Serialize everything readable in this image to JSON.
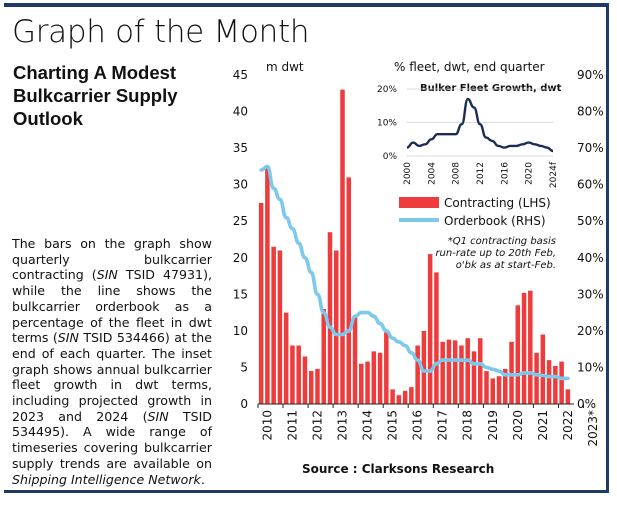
{
  "page": {
    "title": "Graph of the Month",
    "subtitle": "Charting A Modest Bulkcarrier Supply Outlook",
    "body": {
      "p1": "The bars on the graph show quarterly bulkcarrier contracting (",
      "sin1": "SIN",
      "p2": " TSID 47931), while the line shows the bulkcarrier orderbook as a percentage of the fleet in dwt terms (",
      "sin2": "SIN",
      "p3": " TSID 534466) at the end of each quarter. The inset graph shows annual bulkcarrier fleet growth in dwt terms, including projected growth in 2023 and 2024 (",
      "sin3": "SIN",
      "p4": " TSID 534495). A wide range of timeseries covering bulkcarrier supply trends are available on ",
      "link": "Shipping Intelligence Network",
      "p5": "."
    },
    "source": "Source : Clarksons Research",
    "footnote_line1": "*Q1 contracting basis",
    "footnote_line2": "run-rate up to 20th Feb,",
    "footnote_line3": "o'bk as at start-Feb."
  },
  "colors": {
    "bars": "#ee3b3b",
    "line": "#7cc9ec",
    "inset_line": "#1c2d55",
    "frame": "#1f3a64"
  },
  "chart_data": [
    {
      "type": "bar+line",
      "left_axis_label": "m dwt",
      "right_axis_label": "% fleet, dwt, end quarter",
      "left_ticks": [
        "0",
        "5",
        "10",
        "15",
        "20",
        "25",
        "30",
        "35",
        "40",
        "45"
      ],
      "right_ticks": [
        "0%",
        "10%",
        "20%",
        "30%",
        "40%",
        "50%",
        "60%",
        "70%",
        "80%",
        "90%"
      ],
      "ylim_left": [
        0,
        45
      ],
      "ylim_right": [
        0,
        90
      ],
      "x_tick_labels": [
        "2010",
        "2011",
        "2012",
        "2013",
        "2014",
        "2015",
        "2016",
        "2017",
        "2018",
        "2019",
        "2020",
        "2021",
        "2022",
        "2023*"
      ],
      "legend": {
        "bars": "Contracting (LHS)",
        "line": "Orderbook (RHS)"
      },
      "series": [
        {
          "name": "Contracting (LHS)",
          "unit": "m dwt",
          "values": [
            27.5,
            32.5,
            21.5,
            21,
            12.5,
            8,
            8,
            6.5,
            4.5,
            4.8,
            13,
            23.5,
            21,
            43,
            31,
            12,
            5.5,
            5.8,
            7.2,
            7,
            9.8,
            2,
            1.2,
            1.8,
            2.3,
            8,
            10,
            20.5,
            18,
            8.5,
            8.8,
            8.7,
            8,
            9,
            7.2,
            9,
            4.5,
            3.5,
            3.8,
            4.8,
            8.5,
            13.5,
            15.2,
            15.5,
            7,
            9.5,
            6,
            5.2,
            5.8,
            2
          ]
        },
        {
          "name": "Orderbook (RHS)",
          "unit": "% fleet",
          "values": [
            64,
            65,
            59,
            56,
            51,
            48,
            44,
            40,
            36,
            30,
            25,
            21,
            19,
            19,
            20,
            24,
            25,
            25,
            24,
            22,
            20,
            18,
            17,
            16,
            14,
            12,
            9,
            9,
            11,
            12,
            12,
            12,
            12,
            12,
            11,
            11,
            10,
            9.5,
            9,
            8,
            8,
            8,
            8.5,
            8.5,
            8,
            7.8,
            7.5,
            7.5,
            7,
            7
          ]
        }
      ]
    },
    {
      "type": "line",
      "title": "Bulker Fleet Growth, dwt",
      "y_ticks": [
        "0%",
        "10%",
        "20%"
      ],
      "ylim": [
        0,
        20
      ],
      "x": [
        "2000",
        "2001",
        "2002",
        "2003",
        "2004",
        "2005",
        "2006",
        "2007",
        "2008",
        "2009",
        "2010",
        "2011",
        "2012",
        "2013",
        "2014",
        "2015",
        "2016",
        "2017",
        "2018",
        "2019",
        "2020",
        "2021",
        "2022",
        "2023",
        "2024f"
      ],
      "x_tick_labels": [
        "2000",
        "2004",
        "2008",
        "2012",
        "2016",
        "2020",
        "2024f"
      ],
      "values": [
        2.5,
        4.0,
        3.0,
        3.5,
        5.0,
        6.5,
        6.5,
        6.5,
        6.5,
        9.5,
        17.0,
        14.5,
        9.5,
        5.5,
        4.5,
        3.0,
        2.5,
        3.0,
        3.0,
        3.5,
        4.0,
        3.5,
        3.0,
        2.5,
        1.5
      ]
    }
  ]
}
